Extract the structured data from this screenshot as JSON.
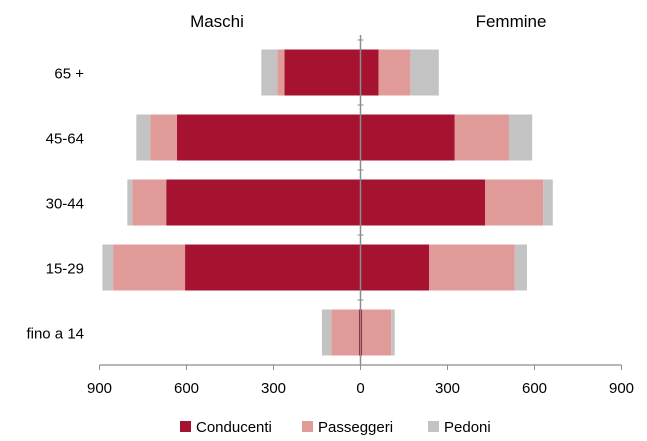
{
  "chart_data": {
    "type": "bar",
    "orientation": "horizontal-diverging",
    "group_titles": {
      "left": "Maschi",
      "right": "Femmine"
    },
    "categories": [
      "65 +",
      "45-64",
      "30-44",
      "15-29",
      "fino a 14"
    ],
    "x_ticks": [
      "900",
      "600",
      "300",
      "0",
      "300",
      "600",
      "900"
    ],
    "xlim": [
      -900,
      900
    ],
    "legend_position": "bottom",
    "grid": false,
    "series": [
      {
        "name": "Conducenti",
        "color": "#A51331",
        "male": [
          262,
          633,
          670,
          605,
          6
        ],
        "female": [
          62,
          325,
          430,
          237,
          6
        ]
      },
      {
        "name": "Passeggeri",
        "color": "#E09A98",
        "male": [
          25,
          92,
          117,
          248,
          95
        ],
        "female": [
          110,
          187,
          200,
          295,
          100
        ]
      },
      {
        "name": "Pedoni",
        "color": "#C3C3C3",
        "male": [
          55,
          48,
          17,
          37,
          32
        ],
        "female": [
          98,
          80,
          33,
          42,
          12
        ]
      }
    ]
  }
}
